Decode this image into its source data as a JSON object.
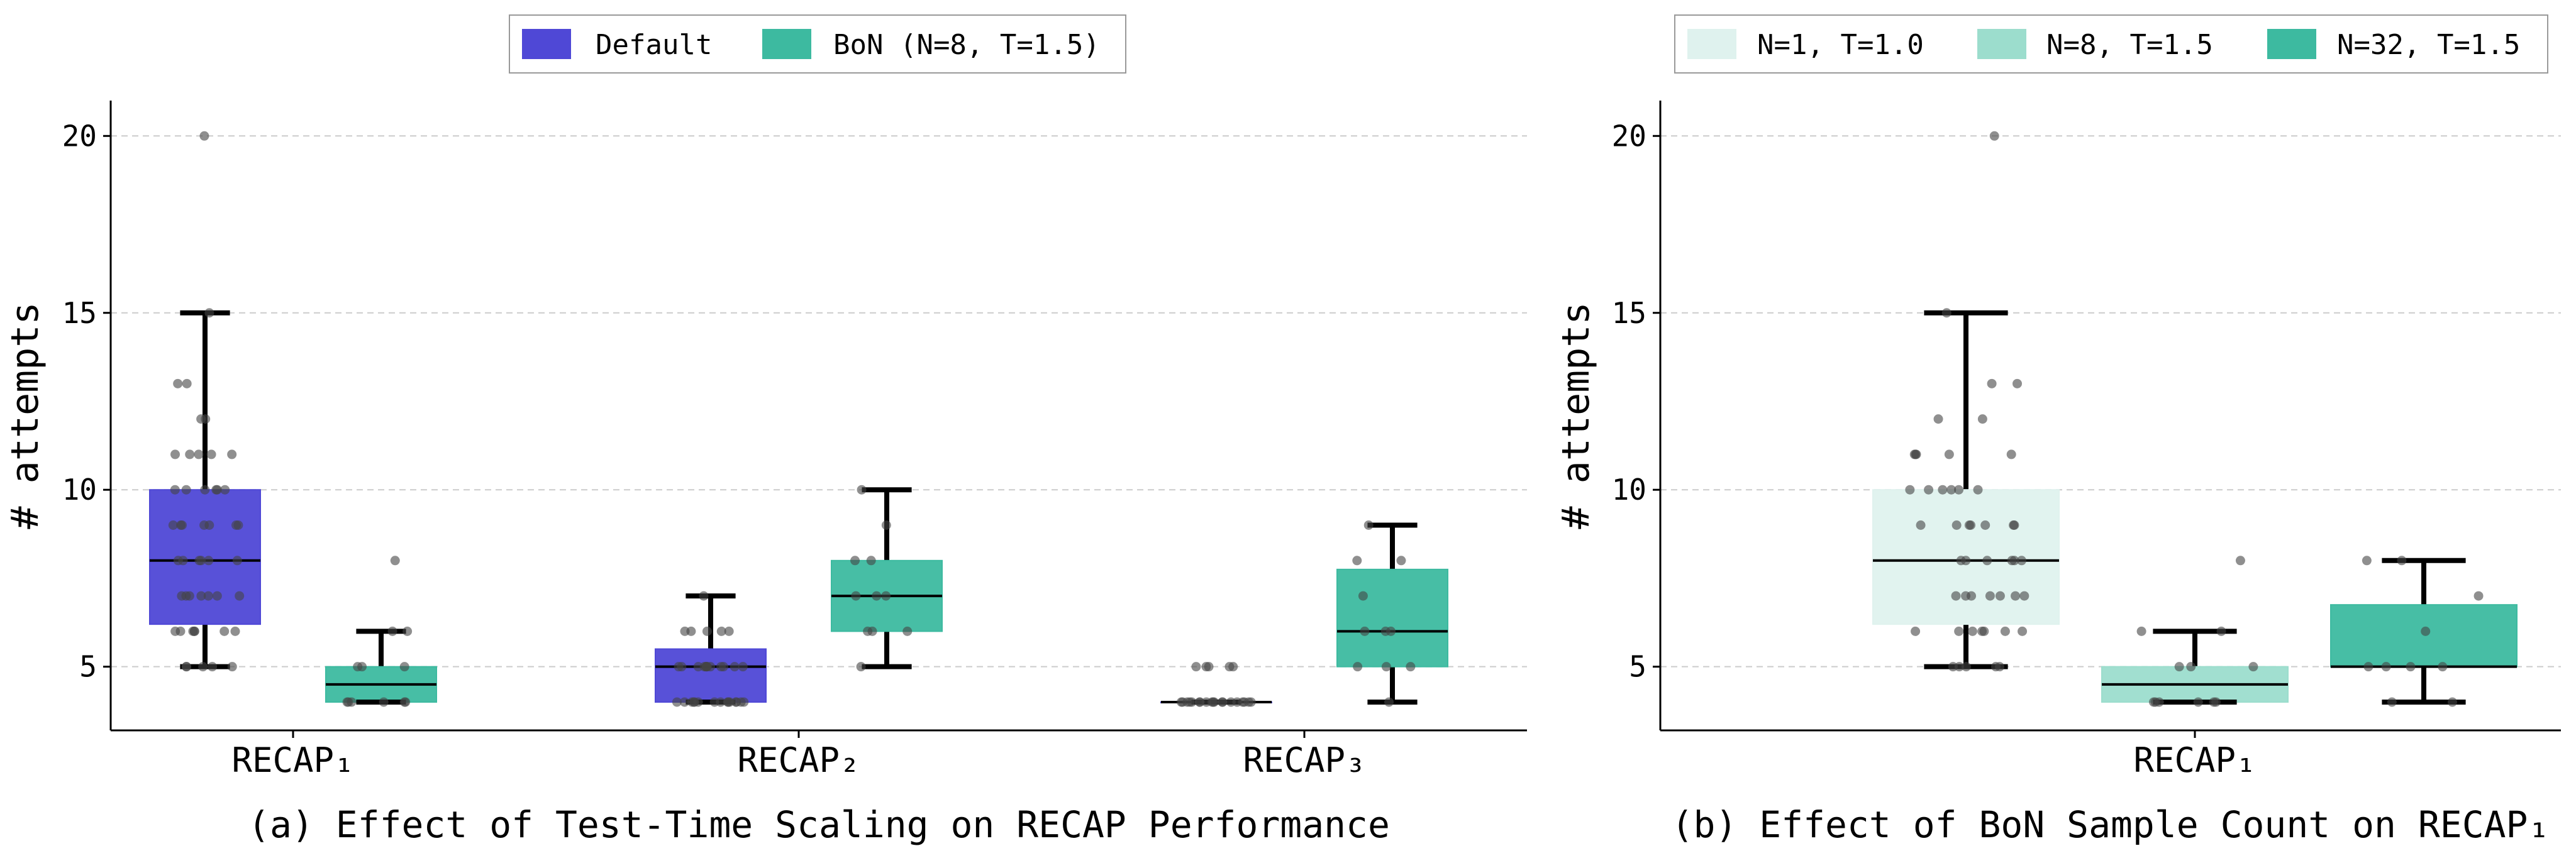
{
  "colors": {
    "default": "#4f48d6",
    "bon": "#3dbaa0",
    "n1": "#dff2ee",
    "n8": "#9cddcd",
    "n32": "#3dbaa0",
    "points": "#444444",
    "grid": "#cccccc"
  },
  "chart_data": [
    {
      "type": "box",
      "caption": "(a) Effect of Test-Time Scaling on RECAP Performance",
      "xlabel": "",
      "ylabel": "# attempts",
      "ylim": [
        3.2,
        21.0
      ],
      "yticks": [
        "5",
        "10",
        "15",
        "20"
      ],
      "grid": "horizontal dashed",
      "legend_position": "top-center",
      "categories": [
        "RECAP₁",
        "RECAP₂",
        "RECAP₃"
      ],
      "series": [
        {
          "name": "Default",
          "boxes": [
            {
              "q1": 6.2,
              "median": 8,
              "q3": 10,
              "whisker_low": 5,
              "whisker_high": 15,
              "points": [
                20,
                15,
                13,
                13,
                12,
                12,
                11,
                11,
                11,
                11,
                11,
                10,
                10,
                10,
                10,
                10,
                10,
                9,
                9,
                9,
                9,
                9,
                9,
                9,
                8,
                8,
                8,
                8,
                8,
                8,
                7,
                7,
                7,
                7,
                7,
                7,
                7,
                6,
                6,
                6,
                6,
                6,
                6,
                6,
                5,
                5,
                5,
                5,
                5
              ]
            },
            {
              "q1": 4,
              "median": 5,
              "q3": 5.5,
              "whisker_low": 4,
              "whisker_high": 7,
              "points": [
                7,
                6,
                6,
                6,
                6,
                6,
                5,
                5,
                5,
                5,
                5,
                5,
                5,
                5,
                5,
                5,
                5,
                5,
                5,
                4,
                4,
                4,
                4,
                4,
                4,
                4,
                4,
                4,
                4,
                4,
                4,
                4,
                4,
                4
              ]
            },
            {
              "q1": 4,
              "median": 4,
              "q3": 4,
              "whisker_low": 4,
              "whisker_high": 4,
              "points": [
                5,
                5,
                5,
                5,
                5,
                4,
                4,
                4,
                4,
                4,
                4,
                4,
                4,
                4,
                4,
                4,
                4,
                4,
                4,
                4,
                4,
                4,
                4,
                4
              ]
            }
          ]
        },
        {
          "name": "BoN (N=8, T=1.5)",
          "boxes": [
            {
              "q1": 4,
              "median": 4.5,
              "q3": 5,
              "whisker_low": 4,
              "whisker_high": 6,
              "points": [
                8,
                6,
                6,
                5,
                5,
                5,
                4,
                4,
                4,
                4,
                4,
                4
              ]
            },
            {
              "q1": 6,
              "median": 7,
              "q3": 8,
              "whisker_low": 5,
              "whisker_high": 10,
              "points": [
                10,
                9,
                8,
                8,
                7,
                7,
                7,
                6,
                6,
                6,
                5
              ]
            },
            {
              "q1": 5,
              "median": 6,
              "q3": 7.75,
              "whisker_low": 4,
              "whisker_high": 9,
              "points": [
                9,
                8,
                8,
                7,
                6,
                6,
                6,
                5,
                5,
                5,
                4
              ]
            }
          ]
        }
      ]
    },
    {
      "type": "box",
      "caption": "(b) Effect of BoN Sample Count on RECAP₁",
      "xlabel": "",
      "ylabel": "# attempts",
      "ylim": [
        3.2,
        21.0
      ],
      "yticks": [
        "5",
        "10",
        "15",
        "20"
      ],
      "grid": "horizontal dashed",
      "legend_position": "top-center",
      "categories": [
        "RECAP₁"
      ],
      "series": [
        {
          "name": "N=1, T=1.0",
          "boxes": [
            {
              "q1": 6.2,
              "median": 8,
              "q3": 10,
              "whisker_low": 5,
              "whisker_high": 15,
              "points": [
                20,
                15,
                13,
                13,
                12,
                12,
                11,
                11,
                11,
                11,
                11,
                10,
                10,
                10,
                10,
                10,
                10,
                9,
                9,
                9,
                9,
                9,
                9,
                9,
                8,
                8,
                8,
                8,
                8,
                8,
                7,
                7,
                7,
                7,
                7,
                7,
                7,
                6,
                6,
                6,
                6,
                6,
                6,
                6,
                5,
                5,
                5,
                5,
                5
              ]
            }
          ]
        },
        {
          "name": "N=8, T=1.5",
          "boxes": [
            {
              "q1": 4,
              "median": 4.5,
              "q3": 5,
              "whisker_low": 4,
              "whisker_high": 6,
              "points": [
                8,
                6,
                6,
                5,
                5,
                5,
                4,
                4,
                4,
                4,
                4,
                4
              ]
            }
          ]
        },
        {
          "name": "N=32, T=1.5",
          "boxes": [
            {
              "q1": 5,
              "median": 5,
              "q3": 6.75,
              "whisker_low": 4,
              "whisker_high": 8,
              "points": [
                8,
                8,
                7,
                6,
                5,
                5,
                5,
                5,
                4,
                4
              ]
            }
          ]
        }
      ]
    }
  ]
}
